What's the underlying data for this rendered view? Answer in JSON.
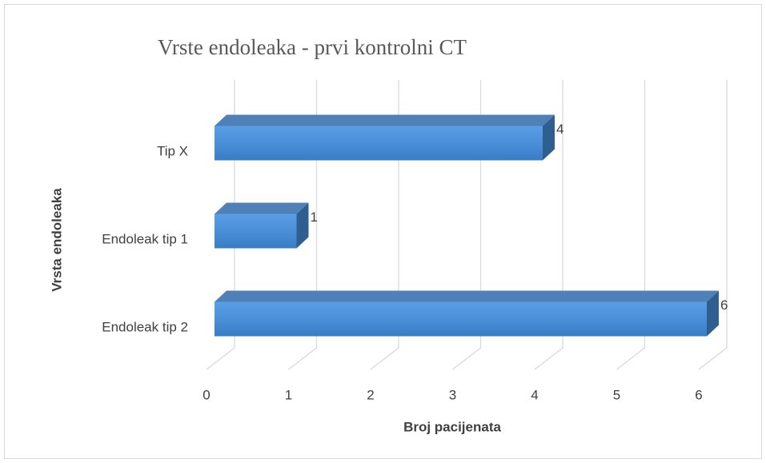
{
  "chart_data": {
    "type": "bar3d_horizontal",
    "title": "Vrste endoleaka - prvi kontrolni CT",
    "categories": [
      "Tip X",
      "Endoleak tip 1",
      "Endoleak tip 2"
    ],
    "values": [
      4,
      1,
      6
    ],
    "color": "#4a8fd8",
    "xlabel": "Broj pacijenata",
    "ylabel": "Vrsta endoleaka",
    "xlim": [
      0,
      6
    ],
    "xticks": [
      0,
      1,
      2,
      3,
      4,
      5,
      6
    ],
    "grid": true
  }
}
